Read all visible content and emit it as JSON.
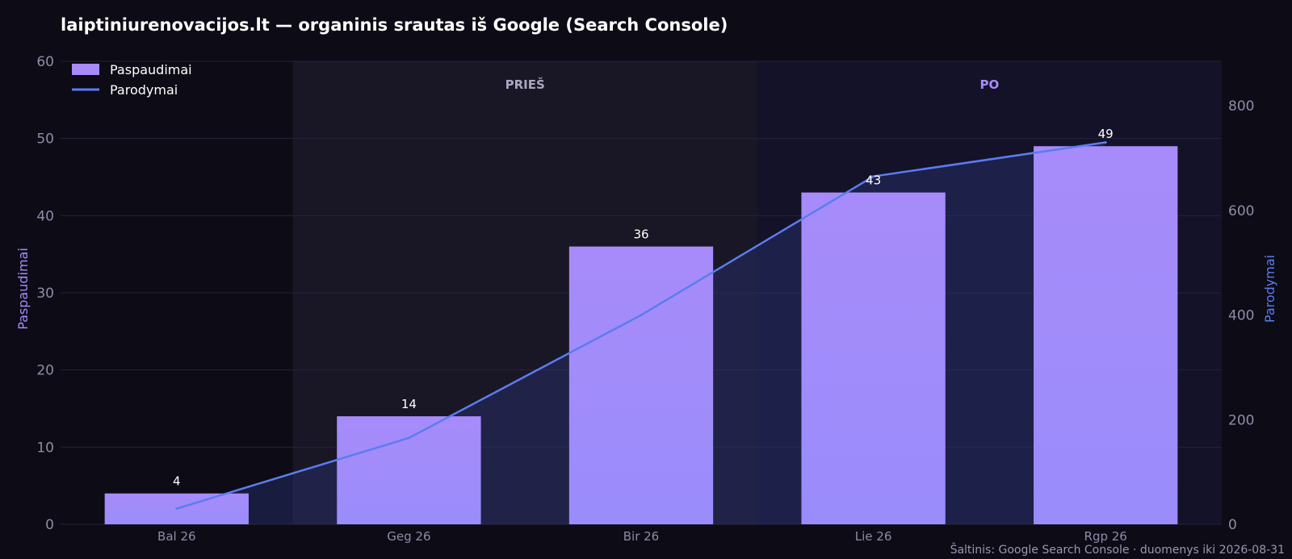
{
  "chart_data": {
    "type": "bar",
    "title": "laiptiniurenovacijos.lt — organinis srautas iš Google (Search Console)",
    "categories": [
      "Bal 26",
      "Geg 26",
      "Bir 26",
      "Lie 26",
      "Rgp 26"
    ],
    "series": [
      {
        "name": "Paspaudimai",
        "type": "bar",
        "axis": "left",
        "values": [
          4,
          14,
          36,
          43,
          49
        ],
        "color": "#a78bfa"
      },
      {
        "name": "Parodymai",
        "type": "line",
        "axis": "right",
        "values": [
          30,
          165,
          400,
          665,
          730
        ],
        "color": "#5b7cf0"
      }
    ],
    "ylabel_left": "Paspaudimai",
    "ylabel_right": "Parodymai",
    "ylim_left": [
      0,
      60
    ],
    "ylim_right": [
      0,
      885
    ],
    "yticks_left": [
      0,
      10,
      20,
      30,
      40,
      50,
      60
    ],
    "yticks_right": [
      0,
      200,
      400,
      600,
      800
    ],
    "grid": true,
    "legend": "top-left",
    "bands": [
      {
        "label": "PRIEŠ",
        "from": 0.5,
        "to": 2.5,
        "color": "#a9a6c0"
      },
      {
        "label": "PO",
        "from": 2.5,
        "to": 4.5,
        "color": "#a78bfa"
      }
    ],
    "source": "Šaltinis: Google Search Console · duomenys iki 2026-08-31"
  }
}
